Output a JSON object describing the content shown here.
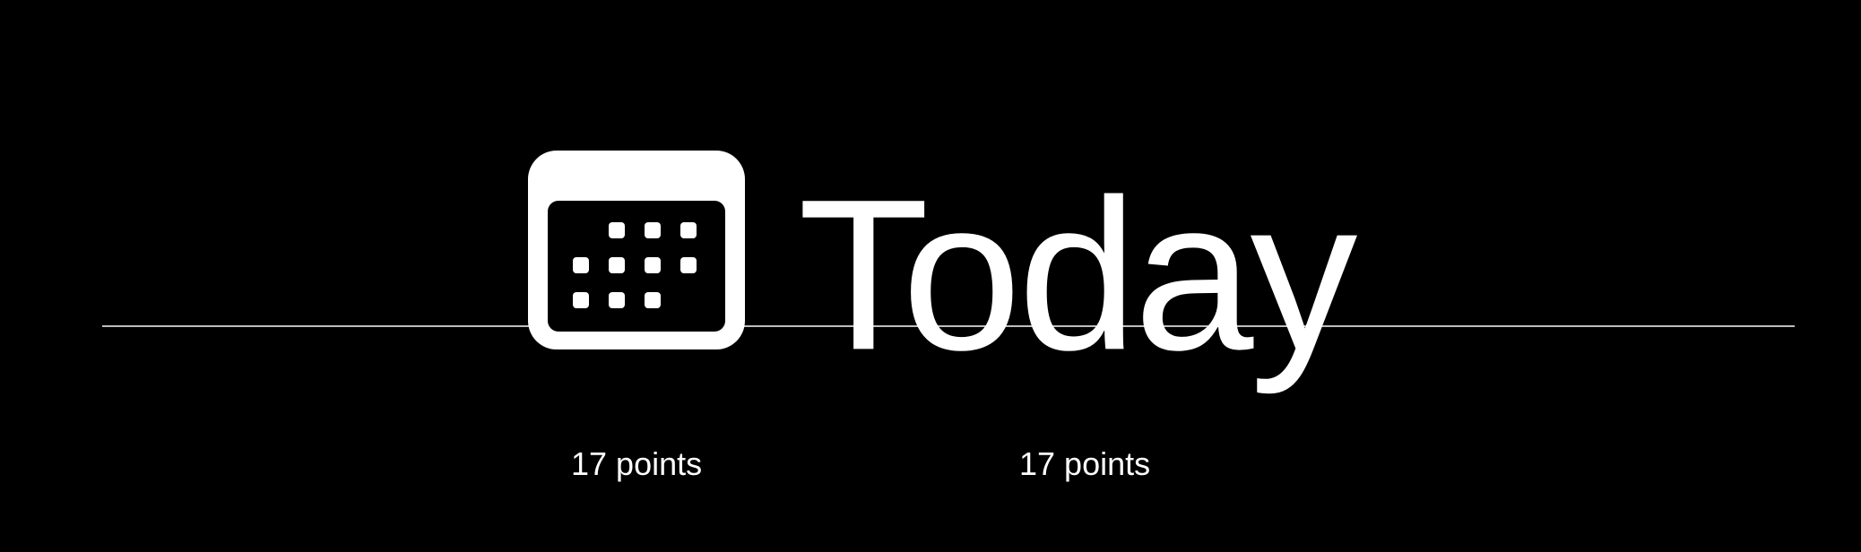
{
  "glyph": {
    "icon": "calendar-icon",
    "word": "Today"
  },
  "captions": {
    "symbol_size": "17 points",
    "text_size": "17 points"
  },
  "colors": {
    "background": "#000000",
    "foreground": "#ffffff",
    "baseline": "#bdbdbd"
  }
}
